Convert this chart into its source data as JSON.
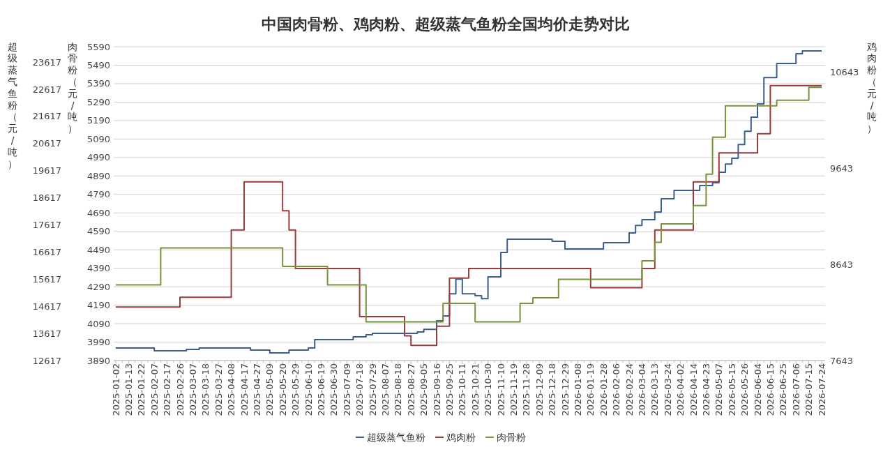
{
  "chart_data": {
    "type": "step",
    "title": "中国肉骨粉、鸡肉粉、超级蒸气鱼粉全国均价走势对比",
    "ylabel": "肉骨粉（元/吨）",
    "y2label": "鸡肉粉（元/吨）",
    "y3label": "超级蒸气鱼粉（元/吨）",
    "categories": [
      "2025-01-02",
      null,
      "2025-01-13",
      null,
      "2025-01-22",
      null,
      "2025-02-07",
      null,
      "2025-02-17",
      null,
      "2025-02-26",
      null,
      "2025-03-07",
      null,
      "2025-03-18",
      null,
      "2025-03-27",
      null,
      "2025-04-08",
      null,
      "2025-04-17",
      null,
      "2025-04-27",
      null,
      "2025-05-09",
      null,
      "2025-05-20",
      null,
      "2025-05-29",
      null,
      "2025-06-10",
      null,
      "2025-06-19",
      null,
      "2025-06-30",
      null,
      "2025-07-09",
      null,
      "2025-07-18",
      null,
      "2025-07-29",
      null,
      "2025-08-07",
      null,
      "2025-08-18",
      null,
      "2025-08-27",
      null,
      "2025-09-05",
      null,
      "2025-09-16",
      null,
      "2025-09-25",
      null,
      "2025-10-11",
      null,
      "2025-10-21",
      null,
      "2025-10-30",
      null,
      "2025-11-10",
      null,
      "2025-11-19",
      null,
      "2025-11-28",
      null,
      "2025-12-09",
      null,
      "2025-12-18",
      null,
      "2025-12-29",
      null,
      "2026-01-08",
      null,
      "2026-01-19",
      null,
      "2026-01-28",
      null,
      "2026-02-06",
      null,
      "2026-02-24",
      null,
      "2026-03-04",
      null,
      "2026-03-13",
      null,
      "2026-03-24",
      null,
      "2026-04-02",
      null,
      "2026-04-14",
      null,
      "2026-04-23",
      null,
      "2026-05-07",
      null,
      "2026-05-15",
      null,
      "2026-05-26",
      null,
      "2026-06-04",
      null,
      "2026-06-15",
      null,
      "2026-06-25",
      null,
      "2026-07-06",
      null,
      "2026-07-15",
      null,
      "2026-07-24"
    ],
    "series": [
      {
        "name": "超级蒸气鱼粉",
        "color": "#3a5f8f",
        "axis": "y3",
        "values": [
          13080,
          13080,
          13080,
          13080,
          13080,
          13080,
          12980,
          12980,
          12980,
          12980,
          12980,
          13030,
          13030,
          13080,
          13080,
          13080,
          13080,
          13080,
          13080,
          13080,
          13080,
          13000,
          13000,
          13000,
          12900,
          12900,
          12900,
          13000,
          13000,
          13000,
          13080,
          13390,
          13390,
          13390,
          13390,
          13390,
          13390,
          13490,
          13490,
          13570,
          13620,
          13620,
          13620,
          13620,
          13620,
          13620,
          13620,
          13670,
          13770,
          13770,
          14080,
          14260,
          15080,
          15620,
          15080,
          15080,
          15010,
          14900,
          15700,
          15700,
          16600,
          17090,
          17090,
          17090,
          17090,
          17090,
          17090,
          17090,
          17010,
          17010,
          16730,
          16730,
          16730,
          16730,
          16730,
          16730,
          16960,
          16960,
          16960,
          16960,
          17320,
          17600,
          17810,
          17810,
          18090,
          18580,
          18580,
          18890,
          18890,
          18890,
          18890,
          19070,
          19070,
          19170,
          19560,
          19860,
          20070,
          20580,
          21070,
          21590,
          22080,
          23050,
          23050,
          23570,
          23570,
          23570,
          23930,
          24030,
          24030,
          24030,
          24030
        ]
      },
      {
        "name": "鸡肉粉",
        "color": "#9b3a3a",
        "axis": "y2",
        "values": [
          8200,
          8200,
          8200,
          8200,
          8200,
          8200,
          8200,
          8200,
          8200,
          8200,
          8300,
          8300,
          8300,
          8300,
          8300,
          8300,
          8300,
          8300,
          9000,
          9000,
          9500,
          9500,
          9500,
          9500,
          9500,
          9500,
          9200,
          9000,
          8600,
          8600,
          8600,
          8600,
          8600,
          8600,
          8600,
          8600,
          8600,
          8600,
          8100,
          8100,
          8100,
          8100,
          8100,
          8100,
          8100,
          7900,
          7800,
          7800,
          7800,
          7800,
          8000,
          8000,
          8500,
          8500,
          8500,
          8600,
          8600,
          8600,
          8600,
          8600,
          8600,
          8600,
          8600,
          8600,
          8600,
          8600,
          8600,
          8600,
          8600,
          8600,
          8600,
          8600,
          8600,
          8600,
          8400,
          8400,
          8400,
          8400,
          8400,
          8400,
          8400,
          8400,
          8600,
          8600,
          9000,
          9000,
          9000,
          9000,
          9000,
          9000,
          9500,
          9500,
          9500,
          9500,
          9800,
          9800,
          9800,
          9800,
          9800,
          9800,
          10000,
          10000,
          10500,
          10500,
          10500,
          10500,
          10500,
          10500,
          10500,
          10500,
          10500
        ]
      },
      {
        "name": "肉骨粉",
        "color": "#76943c",
        "values": [
          4300,
          4300,
          4300,
          4300,
          4300,
          4300,
          4300,
          4500,
          4500,
          4500,
          4500,
          4500,
          4500,
          4500,
          4500,
          4500,
          4500,
          4500,
          4500,
          4500,
          4500,
          4500,
          4500,
          4500,
          4500,
          4500,
          4400,
          4400,
          4400,
          4400,
          4400,
          4400,
          4400,
          4300,
          4300,
          4300,
          4300,
          4300,
          4300,
          4100,
          4100,
          4100,
          4100,
          4100,
          4100,
          4100,
          4100,
          4100,
          4100,
          4100,
          4100,
          4200,
          4200,
          4200,
          4200,
          4200,
          4100,
          4100,
          4100,
          4100,
          4100,
          4100,
          4100,
          4200,
          4200,
          4230,
          4230,
          4230,
          4230,
          4330,
          4330,
          4330,
          4330,
          4330,
          4330,
          4330,
          4330,
          4330,
          4330,
          4330,
          4330,
          4330,
          4430,
          4430,
          4530,
          4630,
          4630,
          4630,
          4630,
          4630,
          4730,
          4730,
          4900,
          5100,
          5100,
          5270,
          5270,
          5270,
          5270,
          5270,
          5270,
          5270,
          5270,
          5300,
          5300,
          5300,
          5300,
          5300,
          5370,
          5370,
          5370
        ]
      }
    ],
    "ylim": [
      3890,
      5590
    ],
    "yticks": [
      3890,
      3990,
      4090,
      4190,
      4290,
      4390,
      4490,
      4590,
      4690,
      4790,
      4890,
      4990,
      5090,
      5190,
      5290,
      5390,
      5490,
      5590
    ],
    "y2lim": [
      7643,
      10904
    ],
    "y2ticks": [
      7643,
      8643,
      9643,
      10643
    ],
    "y3lim": [
      12617,
      24185
    ],
    "y3ticks": [
      12617,
      13617,
      14617,
      15617,
      16617,
      17617,
      18617,
      19617,
      20617,
      21617,
      22617,
      23617
    ],
    "grid": "y",
    "legend": "bottom",
    "line_style": "solid",
    "marker": "none"
  }
}
